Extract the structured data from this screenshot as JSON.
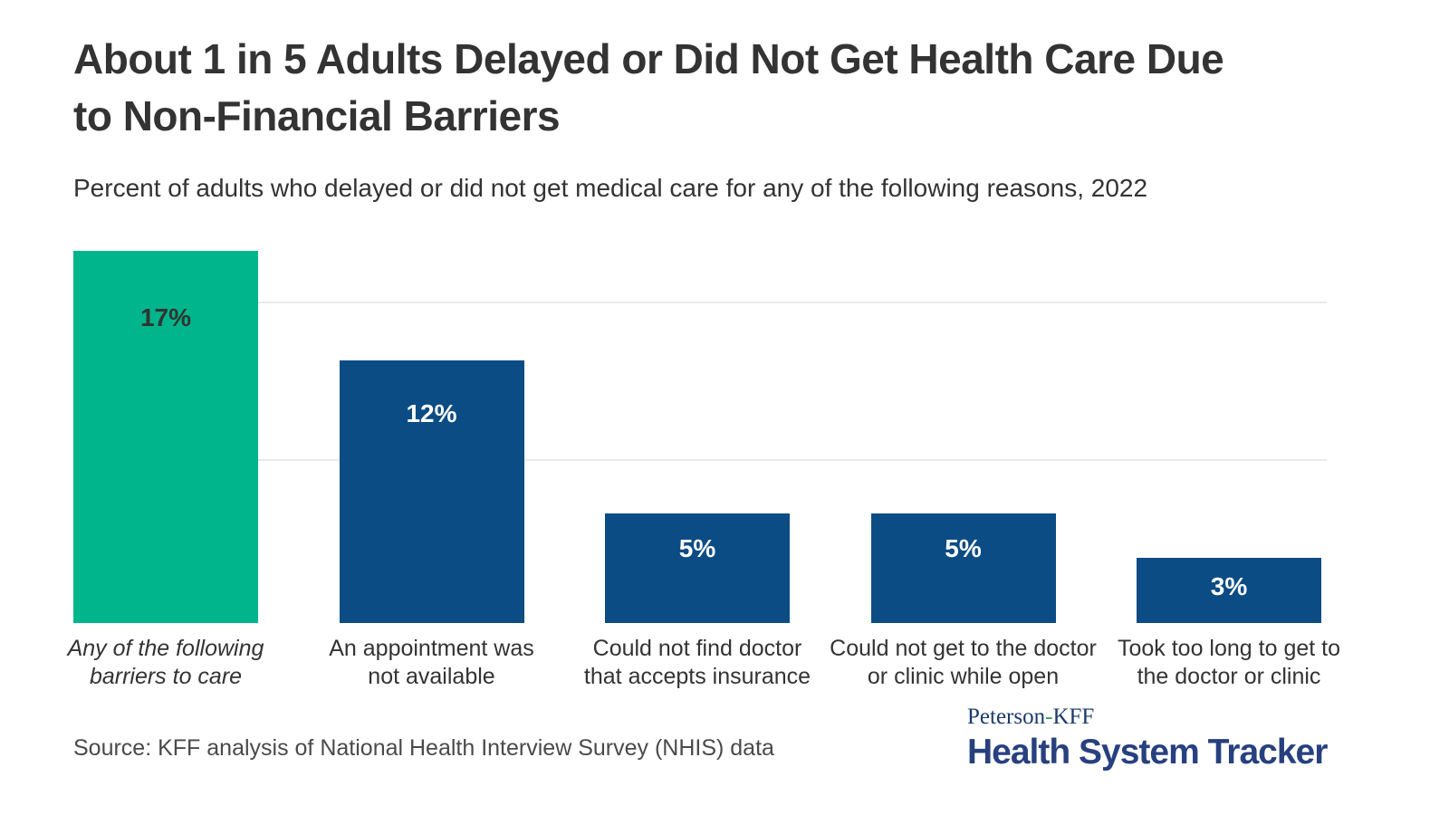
{
  "header": {
    "title_lines": [
      "About 1 in 5 Adults Delayed or Did Not Get Health Care Due",
      "to Non-Financial Barriers"
    ],
    "title_full": "About 1 in 5 Adults Delayed or Did Not Get Health Care Due to Non-Financial Barriers",
    "subtitle": "Percent of adults who delayed or did not get medical care for any of the following reasons, 2022"
  },
  "chart_data": {
    "type": "bar",
    "title": "About 1 in 5 Adults Delayed or Did Not Get Health Care Due to Non-Financial Barriers",
    "subtitle": "Percent of adults who delayed or did not get medical care for any of the following reasons, 2022",
    "categories": [
      "Any of the following barriers to care",
      "An appointment was not available",
      "Could not find doctor that accepts insurance",
      "Could not get to the doctor or clinic while open",
      "Took too long to get to the doctor or clinic"
    ],
    "values": [
      17,
      12,
      5,
      5,
      3
    ],
    "data_labels": [
      "17%",
      "12%",
      "5%",
      "5%",
      "3%"
    ],
    "unit": "percent",
    "xlabel": "",
    "ylabel": "",
    "ylim": [
      0,
      17.5
    ],
    "axis_tick_labels_visible": false,
    "legend": "none",
    "grid": "horizontal gridlines only, unlabeled",
    "gridline_values": [
      7.4,
      14.6
    ],
    "gridline_color": "#eaeaea",
    "bars": [
      {
        "value": 17,
        "label": "17%",
        "color": "#00b48b",
        "label_color": "#333333",
        "category_lines": [
          "Any of the following",
          "barriers to care"
        ],
        "category_italic": true
      },
      {
        "value": 12,
        "label": "12%",
        "color": "#0c4c85",
        "label_color": "#ffffff",
        "category_lines": [
          "An appointment was",
          "not available"
        ],
        "category_italic": false
      },
      {
        "value": 5,
        "label": "5%",
        "color": "#0c4c85",
        "label_color": "#ffffff",
        "category_lines": [
          "Could not find doctor",
          "that accepts insurance"
        ],
        "category_italic": false
      },
      {
        "value": 5,
        "label": "5%",
        "color": "#0c4c85",
        "label_color": "#ffffff",
        "category_lines": [
          "Could not get to the doctor",
          "or clinic while open"
        ],
        "category_italic": false
      },
      {
        "value": 3,
        "label": "3%",
        "color": "#0c4c85",
        "label_color": "#ffffff",
        "category_lines": [
          "Took too long to get to",
          "the doctor or clinic"
        ],
        "category_italic": false
      }
    ]
  },
  "footer": {
    "source": "Source: KFF analysis of National Health Interview Survey (NHIS) data",
    "logo": {
      "peterson": "Peterson",
      "hyphen": "-",
      "kff": "KFF",
      "tracker": "Health System Tracker",
      "navy_serif_color": "#1b3a6b",
      "navy_bold_color": "#27407f",
      "hyphen_green_color": "#3fa05f"
    }
  },
  "palette": {
    "highlight_green": "#00b48b",
    "primary_blue": "#0c4c85",
    "text_dark": "#333333",
    "text_source_gray": "#4a4a4a",
    "gridline_gray": "#eaeaea",
    "background": "#ffffff"
  }
}
